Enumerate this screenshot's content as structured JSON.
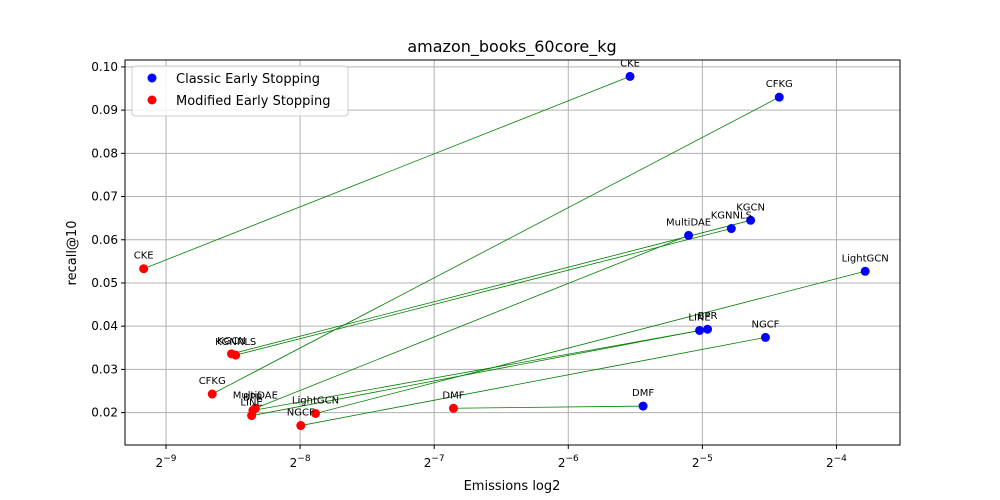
{
  "chart_data": {
    "type": "scatter",
    "title": "amazon_books_60core_kg",
    "xlabel": "Emissions log2",
    "ylabel": "recall@10",
    "x_scale": "log2",
    "xlim": [
      0.00158,
      0.0868
    ],
    "ylim": [
      0.0125,
      0.1016
    ],
    "grid": true,
    "legend_position": "top-left",
    "x_ticks": [
      {
        "value": 0.001953125,
        "label_base": "2",
        "label_exp": "−9"
      },
      {
        "value": 0.00390625,
        "label_base": "2",
        "label_exp": "−8"
      },
      {
        "value": 0.0078125,
        "label_base": "2",
        "label_exp": "−7"
      },
      {
        "value": 0.015625,
        "label_base": "2",
        "label_exp": "−6"
      },
      {
        "value": 0.03125,
        "label_base": "2",
        "label_exp": "−5"
      },
      {
        "value": 0.0625,
        "label_base": "2",
        "label_exp": "−4"
      }
    ],
    "y_ticks": [
      {
        "value": 0.02,
        "label": "0.02"
      },
      {
        "value": 0.03,
        "label": "0.03"
      },
      {
        "value": 0.04,
        "label": "0.04"
      },
      {
        "value": 0.05,
        "label": "0.05"
      },
      {
        "value": 0.06,
        "label": "0.06"
      },
      {
        "value": 0.07,
        "label": "0.07"
      },
      {
        "value": 0.08,
        "label": "0.08"
      },
      {
        "value": 0.09,
        "label": "0.09"
      },
      {
        "value": 0.1,
        "label": "0.10"
      }
    ],
    "series": [
      {
        "name": "Classic Early Stopping",
        "color": "#0000ff",
        "points": [
          {
            "label": "CKE",
            "x": 0.0215,
            "y": 0.0978
          },
          {
            "label": "CFKG",
            "x": 0.0465,
            "y": 0.093
          },
          {
            "label": "KGCN",
            "x": 0.0401,
            "y": 0.0645
          },
          {
            "label": "KGNNLS",
            "x": 0.0363,
            "y": 0.0626
          },
          {
            "label": "MultiDAE",
            "x": 0.0291,
            "y": 0.061
          },
          {
            "label": "LightGCN",
            "x": 0.0725,
            "y": 0.0527
          },
          {
            "label": "LINE",
            "x": 0.0308,
            "y": 0.039
          },
          {
            "label": "BPR",
            "x": 0.0321,
            "y": 0.0393
          },
          {
            "label": "NGCF",
            "x": 0.0433,
            "y": 0.0374
          },
          {
            "label": "DMF",
            "x": 0.023,
            "y": 0.0215
          }
        ]
      },
      {
        "name": "Modified Early Stopping",
        "color": "#ff0000",
        "points": [
          {
            "label": "CKE",
            "x": 0.00174,
            "y": 0.0533
          },
          {
            "label": "CFKG",
            "x": 0.00248,
            "y": 0.0243
          },
          {
            "label": "KGCN",
            "x": 0.00274,
            "y": 0.0336
          },
          {
            "label": "KGNNLS",
            "x": 0.0028,
            "y": 0.0333
          },
          {
            "label": "MultiDAE",
            "x": 0.0031,
            "y": 0.021
          },
          {
            "label": "BPR",
            "x": 0.00306,
            "y": 0.0205
          },
          {
            "label": "LINE",
            "x": 0.00304,
            "y": 0.0193
          },
          {
            "label": "LightGCN",
            "x": 0.00423,
            "y": 0.0198
          },
          {
            "label": "NGCF",
            "x": 0.00392,
            "y": 0.017
          },
          {
            "label": "DMF",
            "x": 0.00863,
            "y": 0.021
          }
        ]
      }
    ],
    "connector_color": "#008000"
  }
}
